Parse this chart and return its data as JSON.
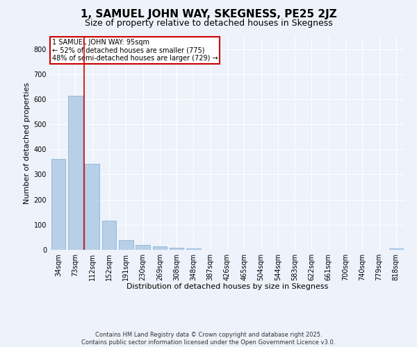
{
  "title": "1, SAMUEL JOHN WAY, SKEGNESS, PE25 2JZ",
  "subtitle": "Size of property relative to detached houses in Skegness",
  "xlabel": "Distribution of detached houses by size in Skegness",
  "ylabel": "Number of detached properties",
  "categories": [
    "34sqm",
    "73sqm",
    "112sqm",
    "152sqm",
    "191sqm",
    "230sqm",
    "269sqm",
    "308sqm",
    "348sqm",
    "387sqm",
    "426sqm",
    "465sqm",
    "504sqm",
    "544sqm",
    "583sqm",
    "622sqm",
    "661sqm",
    "700sqm",
    "740sqm",
    "779sqm",
    "818sqm"
  ],
  "values": [
    362,
    614,
    343,
    116,
    40,
    18,
    15,
    8,
    5,
    0,
    0,
    0,
    0,
    0,
    0,
    0,
    0,
    0,
    0,
    0,
    5
  ],
  "bar_color": "#b8cfe8",
  "bar_edge_color": "#7aaed4",
  "vline_x": 1.5,
  "vline_color": "#cc0000",
  "annotation_text": "1 SAMUEL JOHN WAY: 95sqm\n← 52% of detached houses are smaller (775)\n48% of semi-detached houses are larger (729) →",
  "annotation_box_color": "#ffffff",
  "annotation_box_edge": "#cc0000",
  "ylim": [
    0,
    850
  ],
  "yticks": [
    0,
    100,
    200,
    300,
    400,
    500,
    600,
    700,
    800
  ],
  "background_color": "#eef2fa",
  "footer": "Contains HM Land Registry data © Crown copyright and database right 2025.\nContains public sector information licensed under the Open Government Licence v3.0.",
  "title_fontsize": 11,
  "subtitle_fontsize": 9,
  "axis_label_fontsize": 8,
  "tick_fontsize": 7,
  "footer_fontsize": 6
}
